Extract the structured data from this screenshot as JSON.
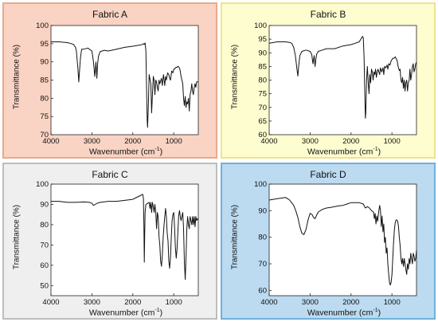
{
  "chart_data": [
    {
      "type": "line",
      "title": "Fabric A",
      "xlabel": "Wavenumber (cm",
      "xlabel_sup": "-1",
      "xlabel_end": ")",
      "ylabel": "Transmittance (%)",
      "xlim": [
        4000,
        400
      ],
      "ylim": [
        70,
        100
      ],
      "xticks": [
        4000,
        3000,
        2000,
        1000
      ],
      "yticks": [
        70,
        75,
        80,
        85,
        90,
        95,
        100
      ],
      "colors": {
        "background": "#f9d3c3",
        "border": "#e8a98f"
      },
      "series": [
        {
          "x": [
            4000,
            3800,
            3600,
            3500,
            3450,
            3400,
            3380,
            3340,
            3320,
            3300,
            3280,
            3250,
            3200,
            3100,
            3000,
            2960,
            2930,
            2900,
            2880,
            2860,
            2840,
            2800,
            2700,
            2600,
            2400,
            2200,
            2000,
            1900,
            1800,
            1760,
            1740,
            1720,
            1700,
            1680,
            1660,
            1650,
            1640,
            1620,
            1600,
            1560,
            1540,
            1520,
            1500,
            1480,
            1460,
            1440,
            1420,
            1400,
            1380,
            1360,
            1340,
            1300,
            1280,
            1250,
            1220,
            1200,
            1180,
            1150,
            1120,
            1100,
            1080,
            1050,
            1020,
            1000,
            980,
            950,
            920,
            900,
            870,
            850,
            820,
            800,
            780,
            760,
            740,
            720,
            700,
            680,
            660,
            640,
            620,
            600,
            580,
            560,
            540,
            520,
            500,
            480,
            460,
            440,
            420,
            400
          ],
          "y": [
            95.5,
            95.5,
            95.3,
            95.0,
            94.8,
            94.0,
            93.0,
            88.0,
            84.5,
            88.0,
            91.0,
            93.5,
            93.5,
            93.8,
            93.0,
            90.0,
            86.0,
            90.0,
            85.5,
            89.5,
            91.5,
            92.8,
            93.2,
            93.0,
            93.5,
            94.0,
            94.3,
            94.5,
            94.7,
            94.8,
            95.0,
            94.8,
            95.2,
            93.0,
            80.0,
            74.0,
            72.0,
            78.0,
            86.5,
            84.0,
            76.0,
            81.0,
            86.0,
            85.0,
            81.0,
            85.0,
            84.5,
            83.0,
            82.0,
            85.0,
            84.0,
            85.5,
            83.5,
            86.5,
            83.5,
            86.0,
            85.0,
            87.0,
            86.5,
            85.5,
            85.0,
            87.5,
            87.0,
            88.0,
            88.0,
            88.5,
            88.5,
            88.8,
            88.5,
            88.0,
            86.0,
            85.0,
            84.0,
            80.0,
            78.0,
            80.5,
            77.5,
            79.0,
            78.5,
            80.0,
            76.5,
            81.0,
            82.0,
            84.0,
            82.0,
            81.0,
            83.0,
            84.0,
            83.0,
            84.5,
            84.5,
            84.5
          ]
        }
      ]
    },
    {
      "type": "line",
      "title": "Fabric B",
      "xlabel": "Wavenumber (cm",
      "xlabel_sup": "-1",
      "xlabel_end": ")",
      "ylabel": "Transmittance (%)",
      "xlim": [
        4000,
        400
      ],
      "ylim": [
        60,
        100
      ],
      "xticks": [
        4000,
        3000,
        2000,
        1000
      ],
      "yticks": [
        60,
        65,
        70,
        75,
        80,
        85,
        90,
        95,
        100
      ],
      "colors": {
        "background": "#fefdcf",
        "border": "#ece48f"
      },
      "series": [
        {
          "x": [
            4000,
            3800,
            3600,
            3500,
            3450,
            3400,
            3360,
            3320,
            3300,
            3280,
            3250,
            3200,
            3100,
            3000,
            2960,
            2930,
            2900,
            2880,
            2860,
            2840,
            2800,
            2700,
            2600,
            2400,
            2200,
            2000,
            1900,
            1800,
            1760,
            1720,
            1700,
            1680,
            1660,
            1650,
            1640,
            1620,
            1600,
            1580,
            1560,
            1540,
            1520,
            1500,
            1480,
            1460,
            1440,
            1420,
            1400,
            1380,
            1360,
            1340,
            1300,
            1280,
            1250,
            1220,
            1200,
            1180,
            1150,
            1120,
            1100,
            1080,
            1050,
            1020,
            1000,
            980,
            950,
            920,
            900,
            870,
            850,
            820,
            800,
            780,
            760,
            740,
            720,
            700,
            680,
            660,
            640,
            620,
            600,
            580,
            560,
            540,
            520,
            500,
            480,
            460,
            440,
            420,
            400
          ],
          "y": [
            93.5,
            94.0,
            94.0,
            93.8,
            93.5,
            92.0,
            89.0,
            84.0,
            81.5,
            85.0,
            89.0,
            90.5,
            91.0,
            90.5,
            89.5,
            86.0,
            89.0,
            85.0,
            87.5,
            89.5,
            90.5,
            91.0,
            91.5,
            91.5,
            92.5,
            93.0,
            93.5,
            94.0,
            95.0,
            96.0,
            95.5,
            88.0,
            72.0,
            66.0,
            68.0,
            80.0,
            85.0,
            79.0,
            75.0,
            82.0,
            79.0,
            84.0,
            83.0,
            80.0,
            83.0,
            82.0,
            84.0,
            81.0,
            83.0,
            84.0,
            82.0,
            84.5,
            83.0,
            84.5,
            82.0,
            85.0,
            84.5,
            85.5,
            84.0,
            86.0,
            85.5,
            87.0,
            87.5,
            88.0,
            88.0,
            88.5,
            88.0,
            87.0,
            85.0,
            83.5,
            84.0,
            80.0,
            79.0,
            81.0,
            77.0,
            80.0,
            76.0,
            79.0,
            80.0,
            76.0,
            79.0,
            80.0,
            84.0,
            80.0,
            82.0,
            85.0,
            86.0,
            83.0,
            84.0,
            86.0,
            86.5
          ]
        }
      ]
    },
    {
      "type": "line",
      "title": "Fabric C",
      "xlabel": "Wavenumber (cm",
      "xlabel_sup": "-1",
      "xlabel_end": ")",
      "ylabel": "Transmittance (%)",
      "xlim": [
        4000,
        400
      ],
      "ylim": [
        45,
        100
      ],
      "xticks": [
        4000,
        3000,
        2000,
        1000
      ],
      "yticks": [
        50,
        60,
        70,
        80,
        90,
        100
      ],
      "colors": {
        "background": "#efefef",
        "border": "#bdbdbd"
      },
      "series": [
        {
          "x": [
            4000,
            3800,
            3600,
            3400,
            3200,
            3050,
            3000,
            2960,
            2920,
            2880,
            2800,
            2600,
            2400,
            2200,
            2000,
            1900,
            1800,
            1760,
            1740,
            1730,
            1720,
            1710,
            1700,
            1680,
            1640,
            1600,
            1580,
            1560,
            1540,
            1520,
            1500,
            1480,
            1460,
            1440,
            1420,
            1400,
            1380,
            1360,
            1340,
            1320,
            1300,
            1280,
            1260,
            1240,
            1220,
            1200,
            1180,
            1160,
            1140,
            1120,
            1100,
            1080,
            1060,
            1040,
            1020,
            1000,
            980,
            960,
            940,
            920,
            900,
            880,
            860,
            840,
            820,
            800,
            780,
            760,
            740,
            720,
            700,
            680,
            660,
            640,
            620,
            600,
            580,
            560,
            540,
            520,
            500,
            480,
            460,
            440,
            420,
            400
          ],
          "y": [
            91.5,
            91.5,
            91.0,
            91.0,
            91.2,
            91.0,
            90.5,
            89.5,
            90.0,
            90.5,
            91.0,
            91.5,
            91.5,
            92.0,
            92.5,
            93.5,
            94.5,
            95.0,
            93.0,
            80.0,
            61.5,
            75.0,
            86.0,
            90.0,
            90.5,
            91.0,
            88.0,
            91.0,
            86.0,
            91.0,
            89.0,
            86.0,
            90.0,
            86.0,
            78.0,
            86.0,
            84.0,
            74.0,
            70.0,
            62.0,
            59.5,
            65.0,
            73.0,
            79.0,
            84.0,
            88.0,
            84.0,
            76.0,
            72.0,
            62.0,
            58.5,
            64.0,
            74.0,
            82.0,
            85.0,
            86.0,
            79.0,
            69.0,
            63.5,
            68.0,
            76.0,
            84.0,
            87.0,
            84.0,
            82.0,
            84.0,
            86.0,
            78.0,
            62.0,
            53.0,
            64.0,
            78.0,
            84.0,
            80.0,
            78.0,
            84.0,
            82.0,
            80.0,
            84.0,
            80.0,
            84.0,
            79.0,
            84.0,
            82.0,
            83.0,
            82.5
          ]
        }
      ]
    },
    {
      "type": "line",
      "title": "Fabric D",
      "xlabel": "Wavenumber (cm",
      "xlabel_sup": "-1",
      "xlabel_end": ")",
      "ylabel": "Transmittance (%)",
      "xlim": [
        4000,
        400
      ],
      "ylim": [
        58,
        100
      ],
      "xticks": [
        4000,
        3000,
        2000,
        1000
      ],
      "yticks": [
        60,
        70,
        80,
        90,
        100
      ],
      "colors": {
        "background": "#bcdaf0",
        "border": "#6fb0da"
      },
      "series": [
        {
          "x": [
            4000,
            3800,
            3600,
            3550,
            3500,
            3450,
            3400,
            3350,
            3300,
            3250,
            3200,
            3150,
            3100,
            3050,
            3000,
            2950,
            2920,
            2880,
            2850,
            2800,
            2700,
            2600,
            2500,
            2400,
            2300,
            2200,
            2100,
            2000,
            1900,
            1800,
            1700,
            1650,
            1600,
            1550,
            1500,
            1450,
            1430,
            1410,
            1390,
            1370,
            1350,
            1320,
            1300,
            1280,
            1260,
            1240,
            1220,
            1200,
            1180,
            1160,
            1140,
            1120,
            1100,
            1080,
            1060,
            1040,
            1020,
            1000,
            980,
            960,
            940,
            920,
            900,
            880,
            860,
            840,
            820,
            800,
            780,
            760,
            740,
            720,
            700,
            680,
            660,
            640,
            620,
            600,
            580,
            560,
            540,
            520,
            500,
            480,
            460,
            440,
            420,
            400
          ],
          "y": [
            94.0,
            94.5,
            95.0,
            94.5,
            94.0,
            93.0,
            92.0,
            90.0,
            87.5,
            84.0,
            81.5,
            81.0,
            83.0,
            86.5,
            89.0,
            88.5,
            87.5,
            87.0,
            88.0,
            89.5,
            90.5,
            91.0,
            91.2,
            91.5,
            91.8,
            92.0,
            92.5,
            93.0,
            93.0,
            93.0,
            92.5,
            91.0,
            91.5,
            91.0,
            90.0,
            89.5,
            87.0,
            89.0,
            85.0,
            88.0,
            86.0,
            90.0,
            92.0,
            90.0,
            84.0,
            88.0,
            82.0,
            85.0,
            78.0,
            80.0,
            74.0,
            76.0,
            70.0,
            66.0,
            63.0,
            62.0,
            63.0,
            66.0,
            72.0,
            78.0,
            83.0,
            85.5,
            86.5,
            86.5,
            86.0,
            84.0,
            80.0,
            77.0,
            72.0,
            70.0,
            72.0,
            69.0,
            72.0,
            70.0,
            68.0,
            66.0,
            70.0,
            68.0,
            72.0,
            70.0,
            74.0,
            72.0,
            70.0,
            74.0,
            73.0,
            71.0,
            72.0,
            75.0
          ]
        }
      ]
    }
  ]
}
